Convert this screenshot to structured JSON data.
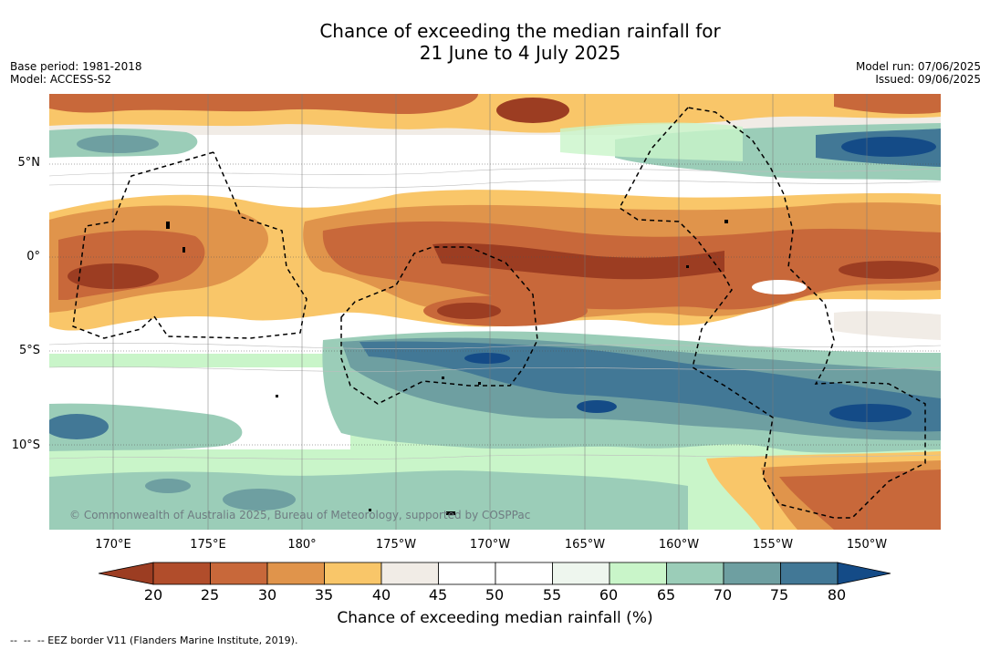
{
  "header": {
    "title_line1": "Chance of exceeding the median rainfall for",
    "title_line2": "21 June to 4 July 2025",
    "base_period": "Base period: 1981-2018",
    "model": "Model: ACCESS-S2",
    "model_run": "Model run: 07/06/2025",
    "issued": "Issued: 09/06/2025"
  },
  "map": {
    "lat_labels": [
      "5°N",
      "0°",
      "5°S",
      "10°S"
    ],
    "lon_labels": [
      "170°E",
      "175°E",
      "180°",
      "175°W",
      "170°W",
      "165°W",
      "160°W",
      "155°W",
      "150°W"
    ],
    "copyright": "© Commonwealth of Australia 2025, Bureau of Meteorology, supported by COSPPac"
  },
  "legend": {
    "ticks": [
      "20",
      "25",
      "30",
      "35",
      "40",
      "45",
      "50",
      "55",
      "60",
      "65",
      "70",
      "75",
      "80"
    ],
    "colors": [
      "#9c3d22",
      "#b14d2b",
      "#c8683a",
      "#e0944b",
      "#f9c669",
      "#f1ece6",
      "#ffffff",
      "#ffffff",
      "#eef6ee",
      "#c9f5c9",
      "#9bcdb8",
      "#6e9fa1",
      "#427896",
      "#144b87"
    ],
    "label": "Chance of exceeding median rainfall (%)"
  },
  "footnote": "--  --  -- EEZ border V11 (Flanders Marine Institute, 2019)."
}
